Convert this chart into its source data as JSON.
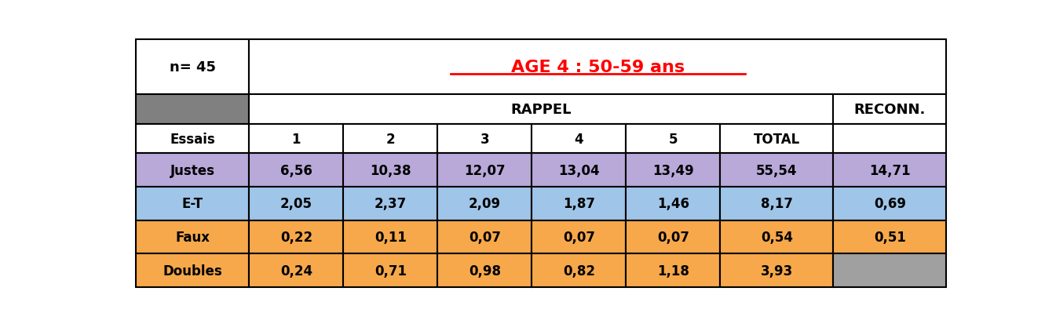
{
  "title": "AGE 4 : 50-59 ans",
  "n_label": "n= 45",
  "rappel_label": "RAPPEL",
  "reconn_label": "RECONN.",
  "essais_label": "Essais",
  "trial_labels": [
    "1",
    "2",
    "3",
    "4",
    "5",
    "TOTAL"
  ],
  "row_labels": [
    "Justes",
    "E-T",
    "Faux",
    "Doubles"
  ],
  "data": [
    [
      "6,56",
      "10,38",
      "12,07",
      "13,04",
      "13,49",
      "55,54",
      "14,71"
    ],
    [
      "2,05",
      "2,37",
      "2,09",
      "1,87",
      "1,46",
      "8,17",
      "0,69"
    ],
    [
      "0,22",
      "0,11",
      "0,07",
      "0,07",
      "0,07",
      "0,54",
      "0,51"
    ],
    [
      "0,24",
      "0,71",
      "0,98",
      "0,82",
      "1,18",
      "3,93",
      ""
    ]
  ],
  "row_colors": [
    "#b8a9d9",
    "#9fc5e8",
    "#f6a84b",
    "#f6a84b"
  ],
  "doubles_reconn_color": "#a0a0a0",
  "header_gray": "#808080",
  "title_color": "#ff0000",
  "figsize": [
    13.45,
    4.14
  ],
  "dpi": 100
}
